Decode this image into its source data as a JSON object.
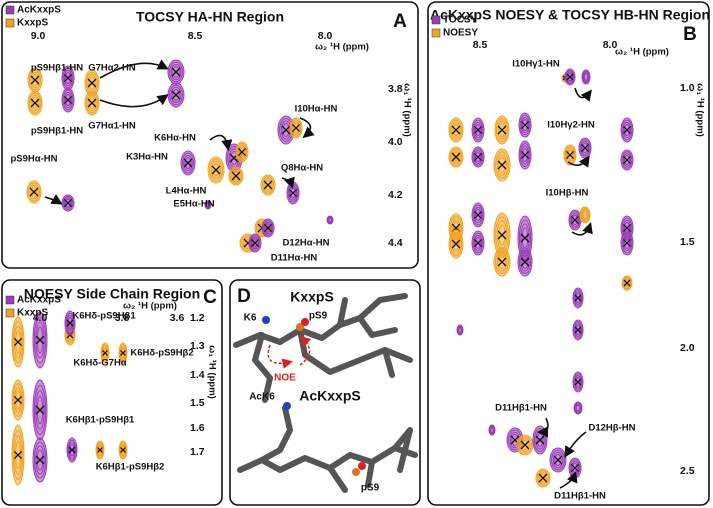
{
  "panels": [
    {
      "letter": "A",
      "title": "TOCSY HA-HN Region",
      "legend": [
        "AcKxxpS",
        "KxxpS"
      ],
      "x_axis": {
        "label": "ω₂ ¹H (ppm)",
        "ticks": [
          "9.0",
          "8.5",
          "8.0"
        ]
      },
      "y_axis": {
        "label": "ω₁ ¹H (ppm)",
        "ticks": [
          "3.8",
          "4.0",
          "4.2",
          "4.4"
        ]
      },
      "annotations": [
        "pS9Hβ1-HN",
        "pS9Hβ1-HN",
        "G7Hα2-HN",
        "G7Hα1-HN",
        "I10Hα-HN",
        "K6Hα-HN",
        "K3Hα-HN",
        "Q8Hα-HN",
        "L4Hα-HN",
        "E5Hα-HN",
        "pS9Hα-HN",
        "D12Hα-HN",
        "D11Hα-HN"
      ]
    },
    {
      "letter": "B",
      "title": "AcKxxpS NOESY & TOCSY HB-HN Region",
      "legend": [
        "TOCSY",
        "NOESY"
      ],
      "x_axis": {
        "label": "ω₂ ¹H (ppm)",
        "ticks": [
          "8.5",
          "8.0"
        ]
      },
      "y_axis": {
        "label": "ω₁ ¹H (ppm)",
        "ticks": [
          "1.0",
          "1.5",
          "2.0",
          "2.5"
        ]
      },
      "annotations": [
        "I10Hγ1-HN",
        "I10Hγ2-HN",
        "I10Hβ-HN",
        "D11Hβ1-HN",
        "D12Hβ-HN",
        "D11Hβ1-HN"
      ]
    },
    {
      "letter": "C",
      "title": "NOESY Side Chain Region",
      "legend": [
        "AcKxxpS",
        "KxxpS"
      ],
      "x_axis": {
        "label": "ω₂ ¹H (ppm)",
        "ticks": [
          "4.0",
          "3.8",
          "3.6"
        ]
      },
      "y_axis": {
        "label": "ω₁ ¹H (ppm)",
        "ticks": [
          "1.2",
          "1.3",
          "1.4",
          "1.5",
          "1.6",
          "1.7"
        ]
      },
      "annotations": [
        "K6Hδ-pS9Hβ1",
        "K6Hδ-G7Hα",
        "K6Hδ-pS9Hβ2",
        "K6Hβ1-pS9Hβ1",
        "K6Hβ1-pS9Hβ2"
      ]
    },
    {
      "letter": "D",
      "labels": [
        "KxxpS",
        "K6",
        "pS9",
        "NOE",
        "AcK6",
        "AcKxxpS",
        "pS9"
      ]
    }
  ]
}
